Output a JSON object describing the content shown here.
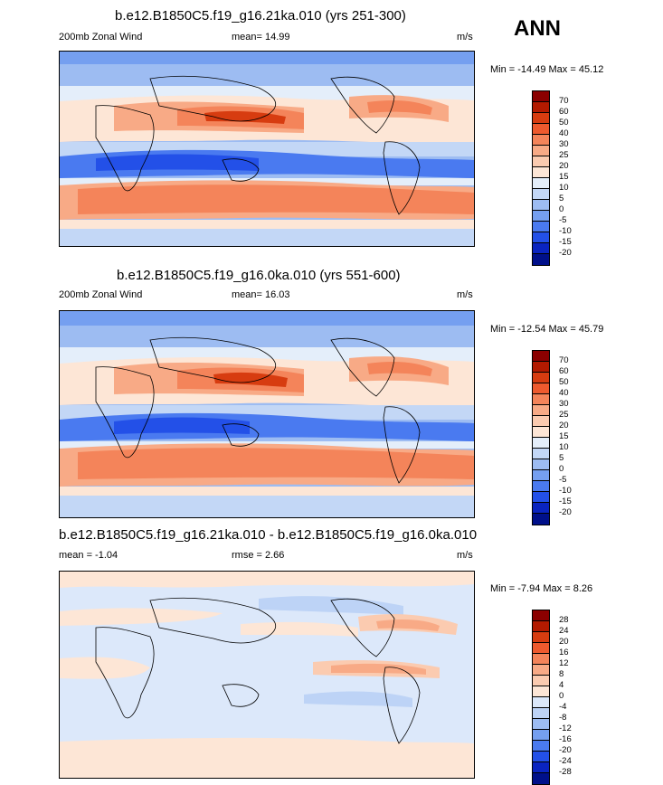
{
  "season": "ANN",
  "panels": [
    {
      "title": "b.e12.B1850C5.f19_g16.21ka.010 (yrs 251-300)",
      "left_label": "200mb Zonal Wind",
      "center_label": "mean=  14.99",
      "units": "m/s",
      "minmax": "Min = -14.49 Max =  45.12",
      "levels": [
        "70",
        "60",
        "50",
        "40",
        "30",
        "25",
        "20",
        "15",
        "10",
        "5",
        "0",
        "-5",
        "-10",
        "-15",
        "-20"
      ],
      "colors": [
        "#8b0000",
        "#b31a00",
        "#d73c10",
        "#ee5a2e",
        "#f4845a",
        "#f8aa86",
        "#fbcbb0",
        "#fde6d6",
        "#e4eefa",
        "#c3d7f6",
        "#9dbcf2",
        "#759ff0",
        "#4a7af0",
        "#2350e8",
        "#0a24c0",
        "#00108a"
      ]
    },
    {
      "title": "b.e12.B1850C5.f19_g16.0ka.010 (yrs 551-600)",
      "left_label": "200mb Zonal Wind",
      "center_label": "mean=  16.03",
      "units": "m/s",
      "minmax": "Min = -12.54 Max =  45.79",
      "levels": [
        "70",
        "60",
        "50",
        "40",
        "30",
        "25",
        "20",
        "15",
        "10",
        "5",
        "0",
        "-5",
        "-10",
        "-15",
        "-20"
      ],
      "colors": [
        "#8b0000",
        "#b31a00",
        "#d73c10",
        "#ee5a2e",
        "#f4845a",
        "#f8aa86",
        "#fbcbb0",
        "#fde6d6",
        "#e4eefa",
        "#c3d7f6",
        "#9dbcf2",
        "#759ff0",
        "#4a7af0",
        "#2350e8",
        "#0a24c0",
        "#00108a"
      ]
    },
    {
      "title": "b.e12.B1850C5.f19_g16.21ka.010 - b.e12.B1850C5.f19_g16.0ka.010",
      "left_label": "mean =  -1.04",
      "center_label": "rmse =   2.66",
      "units": "m/s",
      "minmax": "Min =  -7.94 Max =   8.26",
      "levels": [
        "28",
        "24",
        "20",
        "16",
        "12",
        "8",
        "4",
        "0",
        "-4",
        "-8",
        "-12",
        "-16",
        "-20",
        "-24",
        "-28"
      ],
      "colors": [
        "#8b0000",
        "#b31a00",
        "#d73c10",
        "#ee5a2e",
        "#f4845a",
        "#f8aa86",
        "#fbcbb0",
        "#fde6d6",
        "#dce8fa",
        "#bdd3f6",
        "#9dbcf2",
        "#759ff0",
        "#4a7af0",
        "#2350e8",
        "#0a24c0",
        "#00108a"
      ]
    }
  ]
}
